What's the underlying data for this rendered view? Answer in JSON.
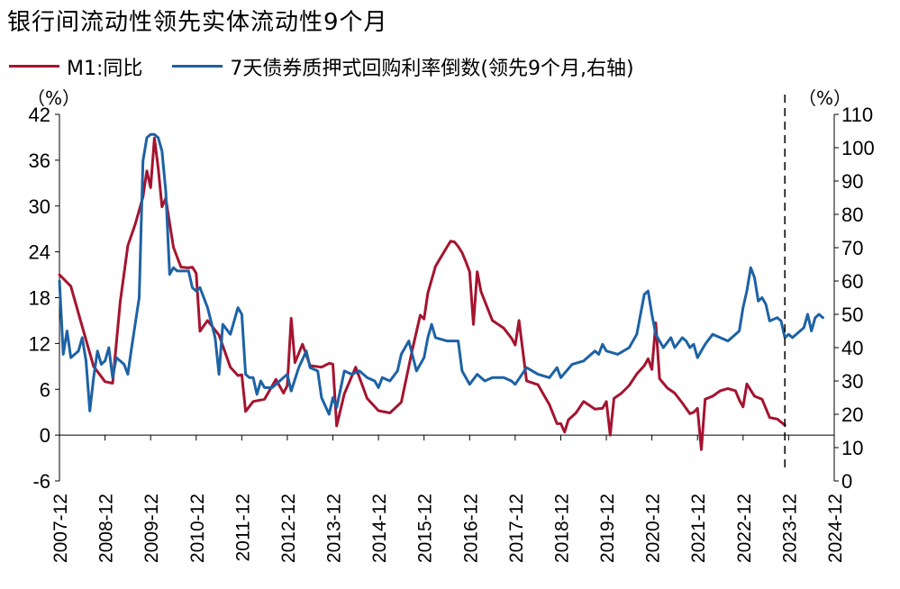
{
  "chart_data": {
    "type": "line",
    "title": "银行间流动性领先实体流动性9个月",
    "left_unit": "（%）",
    "right_unit": "（%）",
    "left_axis": {
      "min": -6,
      "max": 42,
      "ticks": [
        42,
        36,
        30,
        24,
        18,
        12,
        6,
        0,
        -6
      ]
    },
    "right_axis": {
      "min": 0,
      "max": 110,
      "ticks": [
        110,
        100,
        90,
        80,
        70,
        60,
        50,
        40,
        30,
        20,
        10,
        0
      ]
    },
    "x_axis": {
      "start": "2007-12",
      "end": "2024-12",
      "ticks": [
        "2007-12",
        "2008-12",
        "2009-12",
        "2010-12",
        "2011-12",
        "2012-12",
        "2013-12",
        "2014-12",
        "2015-12",
        "2016-12",
        "2017-12",
        "2018-12",
        "2019-12",
        "2020-12",
        "2021-12",
        "2022-12",
        "2023-12",
        "2024-12"
      ]
    },
    "vertical_line": {
      "date": "2023-11",
      "style": "dashed"
    },
    "grid": false,
    "legend_position": "top",
    "series": [
      {
        "name": "M1:同比",
        "axis": "left",
        "color": "#a5142f",
        "points": [
          [
            "2007-12",
            21.0
          ],
          [
            "2008-03",
            19.5
          ],
          [
            "2008-06",
            14.2
          ],
          [
            "2008-09",
            9.0
          ],
          [
            "2008-12",
            7.0
          ],
          [
            "2009-02",
            6.8
          ],
          [
            "2009-04",
            17.5
          ],
          [
            "2009-06",
            24.8
          ],
          [
            "2009-08",
            27.7
          ],
          [
            "2009-10",
            31.2
          ],
          [
            "2009-11",
            34.6
          ],
          [
            "2009-12",
            32.4
          ],
          [
            "2010-01",
            38.9
          ],
          [
            "2010-02",
            35.0
          ],
          [
            "2010-03",
            29.9
          ],
          [
            "2010-04",
            31.0
          ],
          [
            "2010-06",
            24.6
          ],
          [
            "2010-08",
            22.0
          ],
          [
            "2010-10",
            21.9
          ],
          [
            "2010-11",
            22.0
          ],
          [
            "2010-12",
            21.2
          ],
          [
            "2011-01",
            13.6
          ],
          [
            "2011-03",
            15.0
          ],
          [
            "2011-06",
            13.1
          ],
          [
            "2011-09",
            8.9
          ],
          [
            "2011-11",
            7.8
          ],
          [
            "2011-12",
            7.9
          ],
          [
            "2012-01",
            3.1
          ],
          [
            "2012-03",
            4.4
          ],
          [
            "2012-06",
            4.7
          ],
          [
            "2012-09",
            7.3
          ],
          [
            "2012-11",
            5.5
          ],
          [
            "2012-12",
            6.5
          ],
          [
            "2013-01",
            15.3
          ],
          [
            "2013-02",
            9.5
          ],
          [
            "2013-04",
            11.9
          ],
          [
            "2013-06",
            9.1
          ],
          [
            "2013-09",
            8.9
          ],
          [
            "2013-11",
            9.4
          ],
          [
            "2013-12",
            9.3
          ],
          [
            "2014-01",
            1.2
          ],
          [
            "2014-03",
            5.4
          ],
          [
            "2014-06",
            8.9
          ],
          [
            "2014-09",
            4.8
          ],
          [
            "2014-12",
            3.2
          ],
          [
            "2015-03",
            2.9
          ],
          [
            "2015-06",
            4.3
          ],
          [
            "2015-09",
            11.4
          ],
          [
            "2015-11",
            15.7
          ],
          [
            "2015-12",
            15.2
          ],
          [
            "2016-01",
            18.6
          ],
          [
            "2016-03",
            22.1
          ],
          [
            "2016-06",
            24.6
          ],
          [
            "2016-07",
            25.4
          ],
          [
            "2016-08",
            25.3
          ],
          [
            "2016-09",
            24.7
          ],
          [
            "2016-10",
            23.9
          ],
          [
            "2016-11",
            22.7
          ],
          [
            "2016-12",
            21.4
          ],
          [
            "2017-01",
            14.5
          ],
          [
            "2017-02",
            21.4
          ],
          [
            "2017-03",
            18.8
          ],
          [
            "2017-06",
            15.0
          ],
          [
            "2017-09",
            14.0
          ],
          [
            "2017-11",
            12.7
          ],
          [
            "2017-12",
            11.8
          ],
          [
            "2018-01",
            15.0
          ],
          [
            "2018-03",
            7.1
          ],
          [
            "2018-06",
            6.6
          ],
          [
            "2018-09",
            4.0
          ],
          [
            "2018-11",
            1.5
          ],
          [
            "2018-12",
            1.5
          ],
          [
            "2019-01",
            0.4
          ],
          [
            "2019-02",
            2.0
          ],
          [
            "2019-04",
            2.9
          ],
          [
            "2019-06",
            4.4
          ],
          [
            "2019-09",
            3.4
          ],
          [
            "2019-11",
            3.5
          ],
          [
            "2019-12",
            4.4
          ],
          [
            "2020-01",
            0.0
          ],
          [
            "2020-02",
            4.8
          ],
          [
            "2020-04",
            5.5
          ],
          [
            "2020-06",
            6.5
          ],
          [
            "2020-08",
            8.0
          ],
          [
            "2020-10",
            9.1
          ],
          [
            "2020-11",
            10.0
          ],
          [
            "2020-12",
            8.6
          ],
          [
            "2021-01",
            14.7
          ],
          [
            "2021-02",
            7.4
          ],
          [
            "2021-04",
            6.2
          ],
          [
            "2021-06",
            5.5
          ],
          [
            "2021-08",
            4.2
          ],
          [
            "2021-10",
            2.8
          ],
          [
            "2021-11",
            3.0
          ],
          [
            "2021-12",
            3.5
          ],
          [
            "2022-01",
            -1.9
          ],
          [
            "2022-02",
            4.7
          ],
          [
            "2022-04",
            5.1
          ],
          [
            "2022-06",
            5.8
          ],
          [
            "2022-08",
            6.1
          ],
          [
            "2022-10",
            5.8
          ],
          [
            "2022-11",
            4.6
          ],
          [
            "2022-12",
            3.7
          ],
          [
            "2023-01",
            6.7
          ],
          [
            "2023-03",
            5.1
          ],
          [
            "2023-05",
            4.7
          ],
          [
            "2023-07",
            2.3
          ],
          [
            "2023-09",
            2.1
          ],
          [
            "2023-11",
            1.3
          ]
        ]
      },
      {
        "name": "7天债券质押式回购利率倒数(领先9个月,右轴)",
        "axis": "right",
        "color": "#1d62a5",
        "points": [
          [
            "2007-12",
            60
          ],
          [
            "2008-01",
            38
          ],
          [
            "2008-02",
            45
          ],
          [
            "2008-03",
            37
          ],
          [
            "2008-05",
            39
          ],
          [
            "2008-06",
            43
          ],
          [
            "2008-07",
            36
          ],
          [
            "2008-08",
            21
          ],
          [
            "2008-09",
            31
          ],
          [
            "2008-10",
            39
          ],
          [
            "2008-11",
            35
          ],
          [
            "2008-12",
            36
          ],
          [
            "2009-01",
            40
          ],
          [
            "2009-02",
            31
          ],
          [
            "2009-03",
            37
          ],
          [
            "2009-05",
            35
          ],
          [
            "2009-06",
            32
          ],
          [
            "2009-07",
            40
          ],
          [
            "2009-09",
            55
          ],
          [
            "2009-10",
            96
          ],
          [
            "2009-11",
            103
          ],
          [
            "2009-12",
            104
          ],
          [
            "2010-01",
            104
          ],
          [
            "2010-02",
            103
          ],
          [
            "2010-03",
            99
          ],
          [
            "2010-04",
            87
          ],
          [
            "2010-05",
            62
          ],
          [
            "2010-06",
            64
          ],
          [
            "2010-07",
            63
          ],
          [
            "2010-08",
            63
          ],
          [
            "2010-09",
            63
          ],
          [
            "2010-10",
            63
          ],
          [
            "2010-11",
            58
          ],
          [
            "2010-12",
            57
          ],
          [
            "2011-01",
            58
          ],
          [
            "2011-03",
            52
          ],
          [
            "2011-05",
            43
          ],
          [
            "2011-06",
            32
          ],
          [
            "2011-07",
            47
          ],
          [
            "2011-09",
            44
          ],
          [
            "2011-11",
            52
          ],
          [
            "2011-12",
            50
          ],
          [
            "2012-01",
            32
          ],
          [
            "2012-02",
            31
          ],
          [
            "2012-03",
            31
          ],
          [
            "2012-04",
            26
          ],
          [
            "2012-05",
            30
          ],
          [
            "2012-06",
            28
          ],
          [
            "2012-08",
            28
          ],
          [
            "2012-09",
            29
          ],
          [
            "2012-11",
            31
          ],
          [
            "2012-12",
            32
          ],
          [
            "2013-01",
            27
          ],
          [
            "2013-03",
            34
          ],
          [
            "2013-05",
            39
          ],
          [
            "2013-06",
            34
          ],
          [
            "2013-08",
            33
          ],
          [
            "2013-09",
            25
          ],
          [
            "2013-11",
            20
          ],
          [
            "2013-12",
            25
          ],
          [
            "2014-01",
            22
          ],
          [
            "2014-03",
            33
          ],
          [
            "2014-05",
            32
          ],
          [
            "2014-07",
            33
          ],
          [
            "2014-09",
            31
          ],
          [
            "2014-11",
            30
          ],
          [
            "2014-12",
            28
          ],
          [
            "2015-01",
            31
          ],
          [
            "2015-03",
            30
          ],
          [
            "2015-05",
            33
          ],
          [
            "2015-06",
            38
          ],
          [
            "2015-08",
            42
          ],
          [
            "2015-10",
            33
          ],
          [
            "2015-12",
            37
          ],
          [
            "2016-01",
            43
          ],
          [
            "2016-02",
            47
          ],
          [
            "2016-03",
            43
          ],
          [
            "2016-06",
            42
          ],
          [
            "2016-08",
            42
          ],
          [
            "2016-09",
            42
          ],
          [
            "2016-10",
            33
          ],
          [
            "2016-11",
            31
          ],
          [
            "2016-12",
            29
          ],
          [
            "2017-02",
            32
          ],
          [
            "2017-04",
            30
          ],
          [
            "2017-06",
            31
          ],
          [
            "2017-09",
            31
          ],
          [
            "2017-11",
            30
          ],
          [
            "2017-12",
            29
          ],
          [
            "2018-03",
            34
          ],
          [
            "2018-06",
            32
          ],
          [
            "2018-09",
            31
          ],
          [
            "2018-11",
            34
          ],
          [
            "2018-12",
            31
          ],
          [
            "2019-03",
            35
          ],
          [
            "2019-06",
            36
          ],
          [
            "2019-08",
            38
          ],
          [
            "2019-09",
            39
          ],
          [
            "2019-10",
            38
          ],
          [
            "2019-11",
            41
          ],
          [
            "2019-12",
            39
          ],
          [
            "2020-03",
            38
          ],
          [
            "2020-06",
            40
          ],
          [
            "2020-08",
            44
          ],
          [
            "2020-09",
            50
          ],
          [
            "2020-10",
            56
          ],
          [
            "2020-11",
            57
          ],
          [
            "2020-12",
            50
          ],
          [
            "2021-01",
            44
          ],
          [
            "2021-03",
            40
          ],
          [
            "2021-05",
            43
          ],
          [
            "2021-06",
            40
          ],
          [
            "2021-08",
            43
          ],
          [
            "2021-09",
            42
          ],
          [
            "2021-10",
            40
          ],
          [
            "2021-11",
            41
          ],
          [
            "2021-12",
            37
          ],
          [
            "2022-02",
            41
          ],
          [
            "2022-04",
            44
          ],
          [
            "2022-06",
            43
          ],
          [
            "2022-08",
            42
          ],
          [
            "2022-10",
            44
          ],
          [
            "2022-11",
            45
          ],
          [
            "2022-12",
            52
          ],
          [
            "2023-01",
            57
          ],
          [
            "2023-02",
            64
          ],
          [
            "2023-03",
            61
          ],
          [
            "2023-04",
            54
          ],
          [
            "2023-05",
            55
          ],
          [
            "2023-06",
            53
          ],
          [
            "2023-07",
            48
          ],
          [
            "2023-09",
            49
          ],
          [
            "2023-10",
            48
          ],
          [
            "2023-11",
            43
          ],
          [
            "2023-12",
            44
          ],
          [
            "2024-01",
            43
          ],
          [
            "2024-02",
            44
          ],
          [
            "2024-03",
            45
          ],
          [
            "2024-04",
            46
          ],
          [
            "2024-05",
            50
          ],
          [
            "2024-06",
            45
          ],
          [
            "2024-07",
            49
          ],
          [
            "2024-08",
            50
          ],
          [
            "2024-09",
            49
          ]
        ]
      }
    ]
  }
}
